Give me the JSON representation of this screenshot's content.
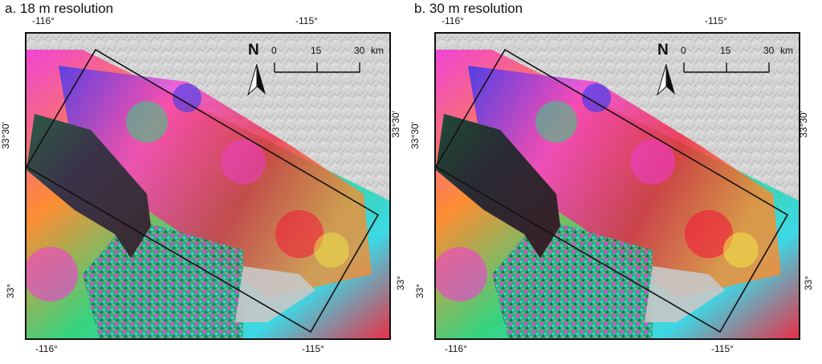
{
  "panels": [
    {
      "title": "a. 18 m resolution",
      "lon_labels": [
        "-116°",
        "-115°"
      ],
      "lat_labels": [
        "33°30'",
        "33°"
      ],
      "north_label": "N",
      "scale": {
        "ticks": [
          "0",
          "15",
          "30"
        ],
        "unit": "km"
      }
    },
    {
      "title": "b. 30 m resolution",
      "lon_labels": [
        "-116°",
        "-115°"
      ],
      "lat_labels": [
        "33°30'",
        "33°"
      ],
      "north_label": "N",
      "scale": {
        "ticks": [
          "0",
          "15",
          "30"
        ],
        "unit": "km"
      }
    }
  ],
  "colors": {
    "hillshade": "#d4d4d4",
    "frame": "#111111",
    "lake": "#3a3348",
    "magenta": "#f23cd6",
    "green": "#2ed47a",
    "cyan": "#35d8e6",
    "orange": "#ff8a2a",
    "red": "#f0203a",
    "blue": "#2a3af0",
    "yellow": "#f2e84a"
  }
}
